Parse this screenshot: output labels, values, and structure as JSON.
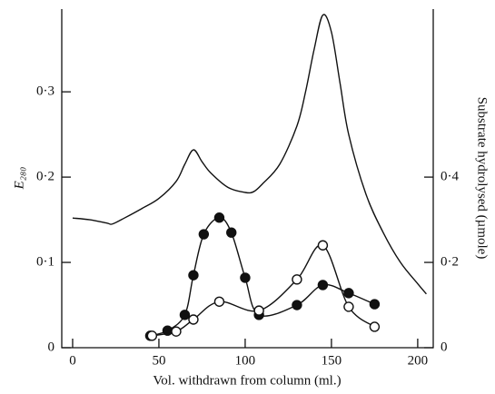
{
  "chart_data": {
    "type": "line",
    "xlabel": "Vol. withdrawn from column (ml.)",
    "ylabel": "E₂₈₀",
    "y2label": "Substrate hydrolysed (µmole)",
    "xlim": [
      -6.3,
      209
    ],
    "xticks": [
      0,
      50,
      100,
      150,
      200
    ],
    "ylim": [
      0,
      0.397
    ],
    "yticks": [
      0,
      {
        "value": 0.1,
        "label": "0·1"
      },
      {
        "value": 0.2,
        "label": "0·2"
      },
      {
        "value": 0.3,
        "label": "0·3"
      }
    ],
    "y2lim": [
      0,
      0.794
    ],
    "y2ticks": [
      0,
      {
        "value": 0.2,
        "label": "0·2"
      },
      {
        "value": 0.4,
        "label": "0·4"
      }
    ],
    "series": [
      {
        "color": "#111111",
        "marker": "none",
        "x": [
          0,
          10,
          20,
          23,
          30,
          40,
          50,
          60,
          65,
          70,
          75,
          80,
          90,
          100,
          105,
          110,
          120,
          130,
          135,
          140,
          145,
          150,
          155,
          160,
          170,
          180,
          190,
          200,
          205
        ],
        "values": [
          0.152,
          0.15,
          0.146,
          0.145,
          0.152,
          0.163,
          0.175,
          0.195,
          0.215,
          0.232,
          0.218,
          0.205,
          0.188,
          0.182,
          0.183,
          0.192,
          0.215,
          0.26,
          0.3,
          0.35,
          0.39,
          0.37,
          0.31,
          0.25,
          0.18,
          0.135,
          0.1,
          0.075,
          0.063
        ]
      },
      {
        "color": "#111111",
        "marker": "filled",
        "axis": "y2",
        "x": [
          45,
          55,
          65,
          70,
          76,
          85,
          92,
          100,
          108,
          130,
          145,
          160,
          175
        ],
        "values": [
          0.028,
          0.04,
          0.077,
          0.17,
          0.266,
          0.305,
          0.27,
          0.164,
          0.077,
          0.1,
          0.147,
          0.128,
          0.102
        ]
      },
      {
        "color": "#111111",
        "marker": "open",
        "axis": "y2",
        "x": [
          46,
          60,
          70,
          85,
          108,
          130,
          145,
          160,
          175
        ],
        "values": [
          0.028,
          0.038,
          0.066,
          0.108,
          0.087,
          0.16,
          0.24,
          0.096,
          0.049
        ]
      }
    ]
  }
}
